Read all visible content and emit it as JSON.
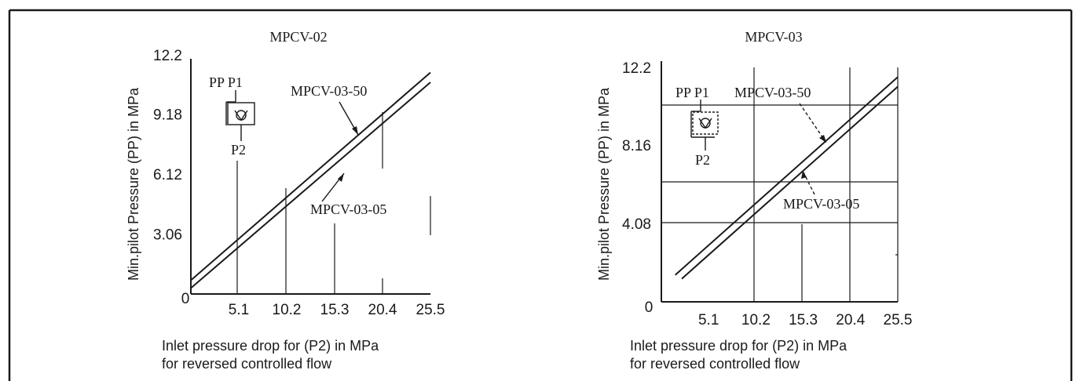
{
  "chart_data": [
    {
      "type": "line",
      "title": "MPCV-02",
      "xlabel_lines": [
        "Inlet pressure drop for (P2) in MPa",
        "for reversed controlled flow"
      ],
      "ylabel": "Min.pilot Pressure (PP)  in MPa",
      "x_ticks": [
        "5.1",
        "10.2",
        "15.3",
        "20.4",
        "25.5"
      ],
      "y_ticks": [
        "3.06",
        "6.12",
        "9.18",
        "12.2"
      ],
      "origin_label": "0",
      "xlim": [
        0,
        25.5
      ],
      "ylim": [
        0,
        12.2
      ],
      "series": [
        {
          "name": "MPCV-03-50",
          "x": [
            0,
            25.5
          ],
          "y": [
            0.7,
            11.3
          ]
        },
        {
          "name": "MPCV-03-05",
          "x": [
            0,
            25.5
          ],
          "y": [
            0.3,
            10.8
          ]
        }
      ],
      "symbol": {
        "top_labels": "PP P1",
        "bottom_label": "P2"
      }
    },
    {
      "type": "line",
      "title": "MPCV-03",
      "xlabel_lines": [
        "Inlet pressure drop for (P2) in MPa",
        "for reversed controlled flow"
      ],
      "ylabel": "Min.pilot Pressure (PP)  in MPa",
      "x_ticks": [
        "5.1",
        "10.2",
        "15.3",
        "20.4",
        "25.5"
      ],
      "y_ticks": [
        "4.08",
        "8.16",
        "12.2"
      ],
      "origin_label": "0",
      "xlim": [
        0,
        25.5
      ],
      "ylim": [
        0,
        12.2
      ],
      "series": [
        {
          "name": "MPCV-03-50",
          "x": [
            1.5,
            25.5
          ],
          "y": [
            1.4,
            11.7
          ]
        },
        {
          "name": "MPCV-03-05",
          "x": [
            2.2,
            25.5
          ],
          "y": [
            1.2,
            11.2
          ]
        }
      ],
      "symbol": {
        "top_labels": "PP P1",
        "bottom_label": "P2"
      }
    }
  ]
}
